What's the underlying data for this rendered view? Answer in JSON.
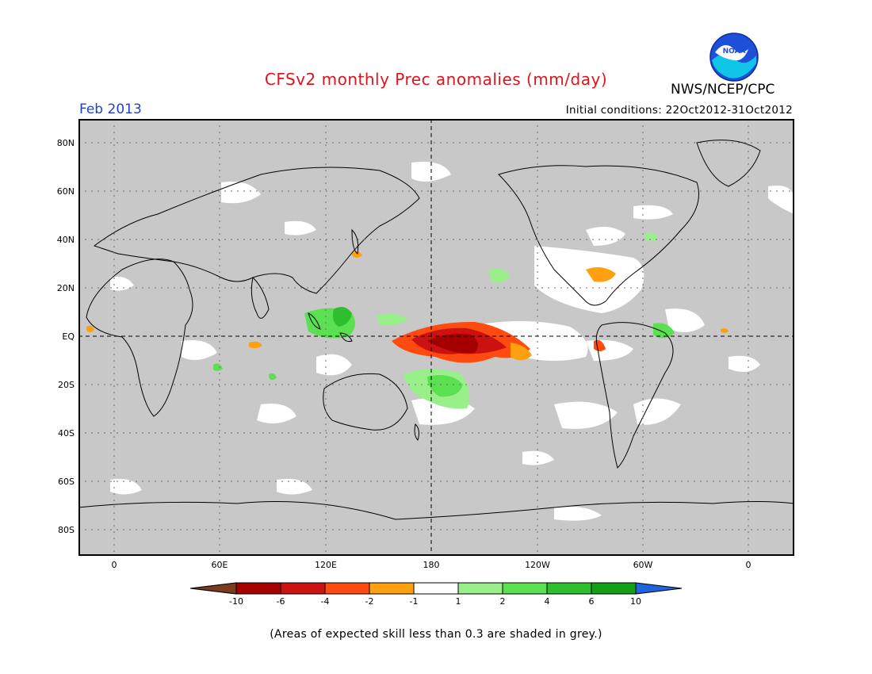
{
  "header": {
    "title": "CFSv2 monthly Prec anomalies (mm/day)",
    "agency": "NWS/NCEP/CPC",
    "month": "Feb 2013",
    "initial_conditions": "Initial conditions: 22Oct2012-31Oct2012",
    "logo_text": "NOAA"
  },
  "map": {
    "lat_labels": [
      "80N",
      "60N",
      "40N",
      "20N",
      "EQ",
      "20S",
      "40S",
      "60S",
      "80S"
    ],
    "lon_labels": [
      "0",
      "60E",
      "120E",
      "180",
      "120W",
      "60W",
      "0"
    ],
    "colors": {
      "grey_mask": "#c8c8c8",
      "near_zero": "#ffffff",
      "coast": "#000000"
    }
  },
  "colorbar": {
    "labels": [
      "-10",
      "-6",
      "-4",
      "-2",
      "-1",
      "1",
      "2",
      "4",
      "6",
      "10"
    ],
    "colors": [
      "#7a3b1e",
      "#a50000",
      "#cc1111",
      "#ff4a10",
      "#ffa010",
      "#ffffff",
      "#99f08a",
      "#5ae050",
      "#2ebf2e",
      "#14a014",
      "#1e64dc"
    ]
  },
  "footer": {
    "note": "(Areas of expected skill less than 0.3 are shaded in grey.)"
  }
}
